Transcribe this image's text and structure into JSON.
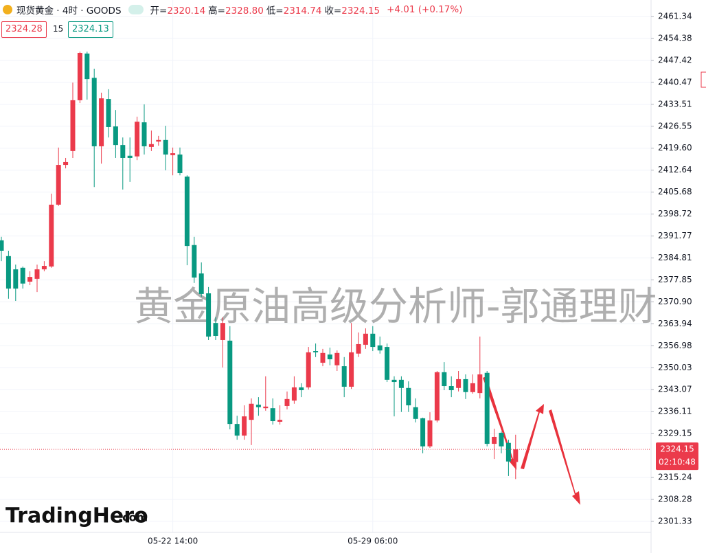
{
  "header": {
    "symbol": "现货黄金 · 4时 · GOODS",
    "items": [
      {
        "key": "开=",
        "value": "2320.14"
      },
      {
        "key": "高=",
        "value": "2328.80"
      },
      {
        "key": "低=",
        "value": "2314.74"
      },
      {
        "key": "收=",
        "value": "2324.15"
      }
    ],
    "change": "+4.01 (+0.17%)"
  },
  "trade_boxes": {
    "sell": "2324.28",
    "spread": "15",
    "buy": "2324.13"
  },
  "price_tag": {
    "price": "2324.15",
    "countdown": "02:10:48"
  },
  "watermark": "黄金原油高级分析师-郭通理财",
  "logo": {
    "name": "TradingHero",
    "suffix": ".com"
  },
  "chart_data": {
    "type": "candlestick",
    "categories": [
      null,
      null,
      null,
      null,
      null,
      null,
      null,
      null,
      null,
      null,
      null,
      null,
      null,
      null,
      null,
      null,
      null,
      null,
      null,
      null,
      null,
      null,
      null,
      null,
      "05-22 14:00",
      null,
      null,
      null,
      null,
      null,
      null,
      null,
      null,
      null,
      null,
      null,
      null,
      null,
      null,
      null,
      null,
      null,
      null,
      null,
      null,
      null,
      null,
      null,
      null,
      null,
      null,
      null,
      "05-29 06:00",
      null,
      null,
      null,
      null,
      null,
      null,
      null,
      null,
      null,
      null,
      null,
      null,
      null,
      null,
      null,
      null,
      null,
      null,
      null,
      null
    ],
    "open": [
      2390.4,
      2385.4,
      2381.2,
      2381.7,
      2377.3,
      2378.2,
      2381.2,
      2382.1,
      2401.7,
      2414.3,
      2418.7,
      2434.8,
      2449.6,
      2441.9,
      2420.2,
      2435.2,
      2426.5,
      2420.6,
      2417.2,
      2417.0,
      2427.8,
      2420.0,
      2421.7,
      2422.2,
      2417.4,
      2417.6,
      2410.6,
      2388.9,
      2379.9,
      2373.6,
      2364.2,
      2358.8,
      2358.6,
      2332.2,
      2328.5,
      2333.5,
      2338.3,
      2337.2,
      2337.2,
      2332.9,
      2337.9,
      2339.6,
      2343.8,
      2343.8,
      2355.3,
      2351.6,
      2354.2,
      2350.8,
      2350.5,
      2344.0,
      2354.5,
      2357.3,
      2360.8,
      2357.1,
      2356.6,
      2346.2,
      2346.2,
      2343.6,
      2337.5,
      2334.0,
      2325.1,
      2333.3,
      2348.6,
      2344.2,
      2343.6,
      2346.4,
      2342.3,
      2342.0,
      2348.4,
      2325.9,
      2329.4,
      2326.2,
      2320.14
    ],
    "high": [
      2391.5,
      2387.1,
      2382.7,
      2382.1,
      2380.6,
      2382.7,
      2383.8,
      2405.2,
      2419.8,
      2416.5,
      2440.4,
      2450.2,
      2450.2,
      2444.8,
      2437.2,
      2438.3,
      2431.7,
      2423.0,
      2423.0,
      2429.6,
      2433.5,
      2425.2,
      2423.5,
      2426.7,
      2419.8,
      2419.8,
      2411.0,
      2391.5,
      2383.4,
      2375.6,
      2366.0,
      2366.0,
      2363.2,
      2334.8,
      2338.1,
      2340.3,
      2340.7,
      2347.3,
      2340.3,
      2338.1,
      2342.5,
      2347.3,
      2345.1,
      2356.6,
      2357.7,
      2356.0,
      2356.4,
      2355.5,
      2353.4,
      2364.2,
      2361.2,
      2362.5,
      2363.2,
      2359.9,
      2357.7,
      2347.3,
      2347.3,
      2345.7,
      2340.3,
      2334.2,
      2335.9,
      2349.0,
      2351.8,
      2347.3,
      2349.0,
      2347.9,
      2347.9,
      2359.9,
      2349.0,
      2330.7,
      2329.8,
      2327.2,
      2328.8
    ],
    "low": [
      2383.8,
      2371.9,
      2371.2,
      2375.1,
      2376.2,
      2374.0,
      2380.6,
      2381.7,
      2401.3,
      2413.2,
      2416.5,
      2433.9,
      2435.0,
      2407.3,
      2414.7,
      2423.0,
      2416.5,
      2406.5,
      2408.9,
      2415.8,
      2417.6,
      2418.7,
      2420.4,
      2412.6,
      2411.0,
      2411.0,
      2382.5,
      2376.9,
      2372.5,
      2358.8,
      2358.8,
      2350.1,
      2330.5,
      2327.2,
      2327.2,
      2325.5,
      2334.8,
      2336.4,
      2332.0,
      2332.0,
      2336.8,
      2338.6,
      2340.7,
      2343.1,
      2353.4,
      2350.5,
      2350.8,
      2349.0,
      2340.7,
      2343.3,
      2353.4,
      2356.0,
      2355.3,
      2354.5,
      2345.5,
      2334.6,
      2336.0,
      2336.0,
      2332.7,
      2322.9,
      2324.6,
      2332.7,
      2342.9,
      2340.7,
      2342.5,
      2340.1,
      2341.8,
      2340.3,
      2325.1,
      2321.1,
      2322.9,
      2315.7,
      2314.74
    ],
    "close": [
      2387.1,
      2375.1,
      2375.1,
      2376.7,
      2378.8,
      2381.2,
      2382.3,
      2401.7,
      2414.3,
      2415.2,
      2434.8,
      2449.8,
      2441.5,
      2420.2,
      2435.4,
      2426.3,
      2420.6,
      2416.5,
      2416.5,
      2428.0,
      2420.2,
      2420.9,
      2422.2,
      2417.6,
      2418.0,
      2411.7,
      2388.6,
      2378.6,
      2373.4,
      2359.9,
      2360.1,
      2364.2,
      2332.2,
      2328.5,
      2334.6,
      2338.6,
      2337.5,
      2337.7,
      2333.1,
      2333.5,
      2340.1,
      2343.8,
      2342.9,
      2354.9,
      2354.9,
      2354.7,
      2352.7,
      2354.7,
      2344.0,
      2354.9,
      2357.5,
      2360.8,
      2356.6,
      2355.5,
      2346.2,
      2345.5,
      2343.6,
      2338.1,
      2333.8,
      2325.1,
      2333.3,
      2348.6,
      2344.2,
      2342.9,
      2346.4,
      2342.3,
      2345.1,
      2347.9,
      2325.9,
      2328.1,
      2325.1,
      2320.3,
      2324.15
    ],
    "up_color": "#eb3a4b",
    "down_color": "#089981",
    "ylim": [
      2297.83,
      2466.57
    ],
    "yticks": [
      2461.34,
      2454.38,
      2447.42,
      2440.47,
      2433.51,
      2426.55,
      {
        "value": 2419.6,
        "label": "2419.60"
      },
      2412.64,
      2405.68,
      2398.72,
      2391.77,
      2384.81,
      2377.85,
      {
        "value": 2370.9,
        "label": "2370.90"
      },
      2363.94,
      2356.98,
      2350.03,
      2343.07,
      2336.11,
      2329.15,
      2315.24,
      2308.28,
      2301.33
    ],
    "grid": true
  }
}
